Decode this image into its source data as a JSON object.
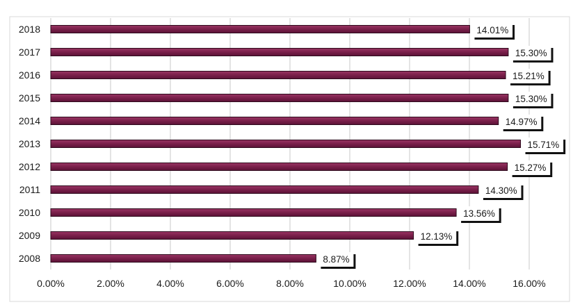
{
  "chart_data": {
    "type": "bar",
    "orientation": "horizontal",
    "categories": [
      "2018",
      "2017",
      "2016",
      "2015",
      "2014",
      "2013",
      "2012",
      "2011",
      "2010",
      "2009",
      "2008"
    ],
    "values": [
      14.01,
      15.3,
      15.21,
      15.3,
      14.97,
      15.71,
      15.27,
      14.3,
      13.56,
      12.13,
      8.87
    ],
    "value_labels": [
      "14.01%",
      "15.30%",
      "15.21%",
      "15.30%",
      "14.97%",
      "15.71%",
      "15.27%",
      "14.30%",
      "13.56%",
      "12.13%",
      "8.87%"
    ],
    "x_ticks": [
      "0.00%",
      "2.00%",
      "4.00%",
      "6.00%",
      "8.00%",
      "10.00%",
      "12.00%",
      "14.00%",
      "16.00%"
    ],
    "xlim": [
      0,
      16
    ],
    "grid": "vertical",
    "legend": "none",
    "bar_color": "#7a1f4a",
    "bar_edge_color": "#2e0a1c",
    "grid_color": "#c8c8c8",
    "label_box_color": "#ffffff"
  }
}
